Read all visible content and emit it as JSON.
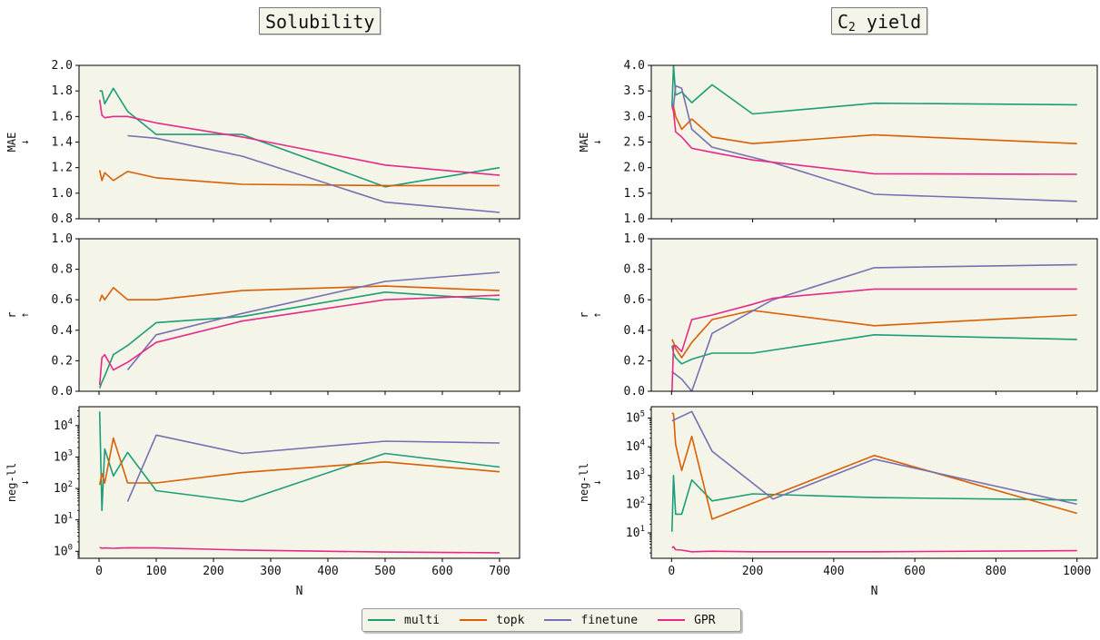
{
  "titles": {
    "left": "Solubility",
    "right_main": "C",
    "right_sub": "2",
    "right_rest": " yield"
  },
  "legend": [
    {
      "name": "multi",
      "color": "#1b9e77"
    },
    {
      "name": "topk",
      "color": "#d95f02"
    },
    {
      "name": "finetune",
      "color": "#7570b3"
    },
    {
      "name": "GPR",
      "color": "#e7298a"
    }
  ],
  "colors": {
    "panel_bg": "#f4f4e8",
    "frame": "#000000"
  },
  "chart_data": [
    {
      "type": "line",
      "panel": "solubility-mae",
      "ylabel": "MAE",
      "arrow": "↓",
      "xlim": [
        -35,
        735
      ],
      "ylim": [
        0.8,
        2.0
      ],
      "yscale": "linear",
      "yticks": [
        0.8,
        1.0,
        1.2,
        1.4,
        1.6,
        1.8,
        2.0
      ],
      "ytick_labels": [
        "0.8",
        "1.0",
        "1.2",
        "1.4",
        "1.6",
        "1.8",
        "2.0"
      ],
      "xticks": [
        0,
        100,
        200,
        300,
        400,
        500,
        600,
        700
      ],
      "show_xlabels": false,
      "series": [
        {
          "name": "multi",
          "x": [
            1,
            5,
            10,
            25,
            50,
            100,
            250,
            500,
            700
          ],
          "y": [
            1.8,
            1.8,
            1.7,
            1.82,
            1.64,
            1.46,
            1.46,
            1.05,
            1.2
          ]
        },
        {
          "name": "topk",
          "x": [
            1,
            5,
            10,
            25,
            50,
            100,
            250,
            500,
            700
          ],
          "y": [
            1.18,
            1.1,
            1.16,
            1.1,
            1.17,
            1.12,
            1.07,
            1.06,
            1.06
          ]
        },
        {
          "name": "finetune",
          "x": [
            50,
            100,
            250,
            500,
            700
          ],
          "y": [
            1.45,
            1.43,
            1.29,
            0.93,
            0.85
          ]
        },
        {
          "name": "GPR",
          "x": [
            1,
            5,
            10,
            25,
            50,
            100,
            250,
            500,
            700
          ],
          "y": [
            1.73,
            1.61,
            1.59,
            1.6,
            1.6,
            1.55,
            1.44,
            1.22,
            1.14
          ]
        }
      ]
    },
    {
      "type": "line",
      "panel": "yield-mae",
      "ylabel": "MAE",
      "arrow": "↓",
      "xlim": [
        -50,
        1050
      ],
      "ylim": [
        1.0,
        4.0
      ],
      "yscale": "linear",
      "yticks": [
        1.0,
        1.5,
        2.0,
        2.5,
        3.0,
        3.5,
        4.0
      ],
      "ytick_labels": [
        "1.0",
        "1.5",
        "2.0",
        "2.5",
        "3.0",
        "3.5",
        "4.0"
      ],
      "xticks": [
        0,
        200,
        400,
        600,
        800,
        1000
      ],
      "show_xlabels": false,
      "series": [
        {
          "name": "multi",
          "x": [
            1,
            5,
            10,
            25,
            50,
            100,
            200,
            500,
            1000
          ],
          "y": [
            3.2,
            4.0,
            3.42,
            3.48,
            3.27,
            3.62,
            3.05,
            3.26,
            3.23
          ]
        },
        {
          "name": "topk",
          "x": [
            1,
            5,
            10,
            25,
            50,
            100,
            200,
            500,
            1000
          ],
          "y": [
            3.17,
            3.2,
            3.0,
            2.75,
            2.95,
            2.6,
            2.47,
            2.64,
            2.47
          ]
        },
        {
          "name": "finetune",
          "x": [
            1,
            5,
            10,
            25,
            50,
            100,
            250,
            500,
            1000
          ],
          "y": [
            3.25,
            3.2,
            3.6,
            3.55,
            2.75,
            2.4,
            2.1,
            1.48,
            1.34
          ]
        },
        {
          "name": "GPR",
          "x": [
            1,
            5,
            10,
            25,
            50,
            100,
            200,
            500,
            1000
          ],
          "y": [
            3.2,
            3.1,
            2.7,
            2.6,
            2.38,
            2.3,
            2.15,
            1.88,
            1.87
          ]
        }
      ]
    },
    {
      "type": "line",
      "panel": "solubility-r",
      "ylabel": "r",
      "arrow": "↑",
      "xlim": [
        -35,
        735
      ],
      "ylim": [
        0.0,
        1.0
      ],
      "yscale": "linear",
      "yticks": [
        0.0,
        0.2,
        0.4,
        0.6,
        0.8,
        1.0
      ],
      "ytick_labels": [
        "0.0",
        "0.2",
        "0.4",
        "0.6",
        "0.8",
        "1.0"
      ],
      "xticks": [
        0,
        100,
        200,
        300,
        400,
        500,
        600,
        700
      ],
      "show_xlabels": false,
      "series": [
        {
          "name": "multi",
          "x": [
            1,
            5,
            10,
            25,
            50,
            100,
            250,
            500,
            700
          ],
          "y": [
            0.02,
            0.06,
            0.1,
            0.24,
            0.3,
            0.45,
            0.49,
            0.65,
            0.6
          ]
        },
        {
          "name": "topk",
          "x": [
            1,
            5,
            10,
            25,
            50,
            100,
            250,
            500,
            700
          ],
          "y": [
            0.59,
            0.63,
            0.6,
            0.68,
            0.6,
            0.6,
            0.66,
            0.69,
            0.66
          ]
        },
        {
          "name": "finetune",
          "x": [
            50,
            100,
            250,
            500,
            700
          ],
          "y": [
            0.14,
            0.37,
            0.51,
            0.72,
            0.78
          ]
        },
        {
          "name": "GPR",
          "x": [
            1,
            5,
            10,
            25,
            50,
            100,
            250,
            500,
            700
          ],
          "y": [
            0.04,
            0.22,
            0.24,
            0.14,
            0.19,
            0.32,
            0.46,
            0.6,
            0.63
          ]
        }
      ]
    },
    {
      "type": "line",
      "panel": "yield-r",
      "ylabel": "r",
      "arrow": "↑",
      "xlim": [
        -50,
        1050
      ],
      "ylim": [
        0.0,
        1.0
      ],
      "yscale": "linear",
      "yticks": [
        0.0,
        0.2,
        0.4,
        0.6,
        0.8,
        1.0
      ],
      "ytick_labels": [
        "0.0",
        "0.2",
        "0.4",
        "0.6",
        "0.8",
        "1.0"
      ],
      "xticks": [
        0,
        200,
        400,
        600,
        800,
        1000
      ],
      "show_xlabels": false,
      "series": [
        {
          "name": "multi",
          "x": [
            1,
            5,
            10,
            25,
            50,
            100,
            200,
            500,
            1000
          ],
          "y": [
            0.3,
            0.25,
            0.22,
            0.18,
            0.21,
            0.25,
            0.25,
            0.37,
            0.34
          ]
        },
        {
          "name": "topk",
          "x": [
            1,
            5,
            10,
            25,
            50,
            100,
            200,
            500,
            1000
          ],
          "y": [
            0.34,
            0.32,
            0.28,
            0.22,
            0.32,
            0.47,
            0.53,
            0.43,
            0.5
          ]
        },
        {
          "name": "finetune",
          "x": [
            1,
            5,
            10,
            25,
            50,
            100,
            250,
            500,
            1000
          ],
          "y": [
            0.13,
            0.12,
            0.11,
            0.08,
            0.0,
            0.38,
            0.6,
            0.81,
            0.83
          ]
        },
        {
          "name": "GPR",
          "x": [
            1,
            5,
            10,
            25,
            50,
            100,
            200,
            250,
            500,
            1000
          ],
          "y": [
            0.0,
            0.3,
            0.3,
            0.26,
            0.47,
            0.5,
            0.57,
            0.61,
            0.67,
            0.67
          ]
        }
      ]
    },
    {
      "type": "line",
      "panel": "solubility-negll",
      "ylabel": "neg-ll",
      "arrow": "↓",
      "xlim": [
        -35,
        735
      ],
      "ylim": [
        0.6,
        40000
      ],
      "yscale": "log",
      "yticks": [
        1,
        10,
        100,
        1000,
        10000
      ],
      "ytick_labels": [
        "10^0",
        "10^1",
        "10^2",
        "10^3",
        "10^4"
      ],
      "xticks": [
        0,
        100,
        200,
        300,
        400,
        500,
        600,
        700
      ],
      "xtick_labels": [
        "0",
        "100",
        "200",
        "300",
        "400",
        "500",
        "600",
        "700"
      ],
      "show_xlabels": true,
      "xlabel": "N",
      "series": [
        {
          "name": "multi",
          "x": [
            1,
            5,
            10,
            25,
            50,
            100,
            250,
            500,
            700
          ],
          "y": [
            28000,
            20,
            1800,
            250,
            1400,
            85,
            38,
            1300,
            480
          ]
        },
        {
          "name": "topk",
          "x": [
            1,
            5,
            10,
            25,
            50,
            100,
            250,
            500,
            700
          ],
          "y": [
            130,
            300,
            150,
            4000,
            150,
            150,
            320,
            700,
            340
          ]
        },
        {
          "name": "finetune",
          "x": [
            50,
            100,
            250,
            500,
            700
          ],
          "y": [
            38,
            5000,
            1300,
            3200,
            2800
          ]
        },
        {
          "name": "GPR",
          "x": [
            1,
            5,
            10,
            25,
            50,
            100,
            250,
            500,
            700
          ],
          "y": [
            1.35,
            1.25,
            1.28,
            1.25,
            1.3,
            1.28,
            1.1,
            0.95,
            0.9
          ]
        }
      ]
    },
    {
      "type": "line",
      "panel": "yield-negll",
      "ylabel": "neg-ll",
      "arrow": "↓",
      "xlim": [
        -50,
        1050
      ],
      "ylim": [
        1.3,
        250000
      ],
      "yscale": "log",
      "yticks": [
        10,
        100,
        1000,
        10000,
        100000
      ],
      "ytick_labels": [
        "10^1",
        "10^2",
        "10^3",
        "10^4",
        "10^5"
      ],
      "xticks": [
        0,
        200,
        400,
        600,
        800,
        1000
      ],
      "xtick_labels": [
        "0",
        "200",
        "400",
        "600",
        "800",
        "1000"
      ],
      "show_xlabels": true,
      "xlabel": "N",
      "series": [
        {
          "name": "multi",
          "x": [
            1,
            5,
            10,
            25,
            50,
            100,
            200,
            500,
            1000
          ],
          "y": [
            11,
            1000,
            45,
            45,
            700,
            130,
            230,
            170,
            140
          ]
        },
        {
          "name": "topk",
          "x": [
            1,
            5,
            10,
            25,
            50,
            100,
            500,
            1000
          ],
          "y": [
            150000,
            140000,
            12000,
            1500,
            23000,
            30,
            5000,
            48
          ]
        },
        {
          "name": "finetune",
          "x": [
            1,
            50,
            100,
            250,
            500,
            1000
          ],
          "y": [
            80000,
            170000,
            7000,
            150,
            3700,
            100
          ]
        },
        {
          "name": "GPR",
          "x": [
            1,
            5,
            10,
            25,
            50,
            100,
            200,
            500,
            1000
          ],
          "y": [
            3.0,
            3.3,
            2.6,
            2.5,
            2.2,
            2.3,
            2.2,
            2.2,
            2.4
          ]
        }
      ]
    }
  ]
}
